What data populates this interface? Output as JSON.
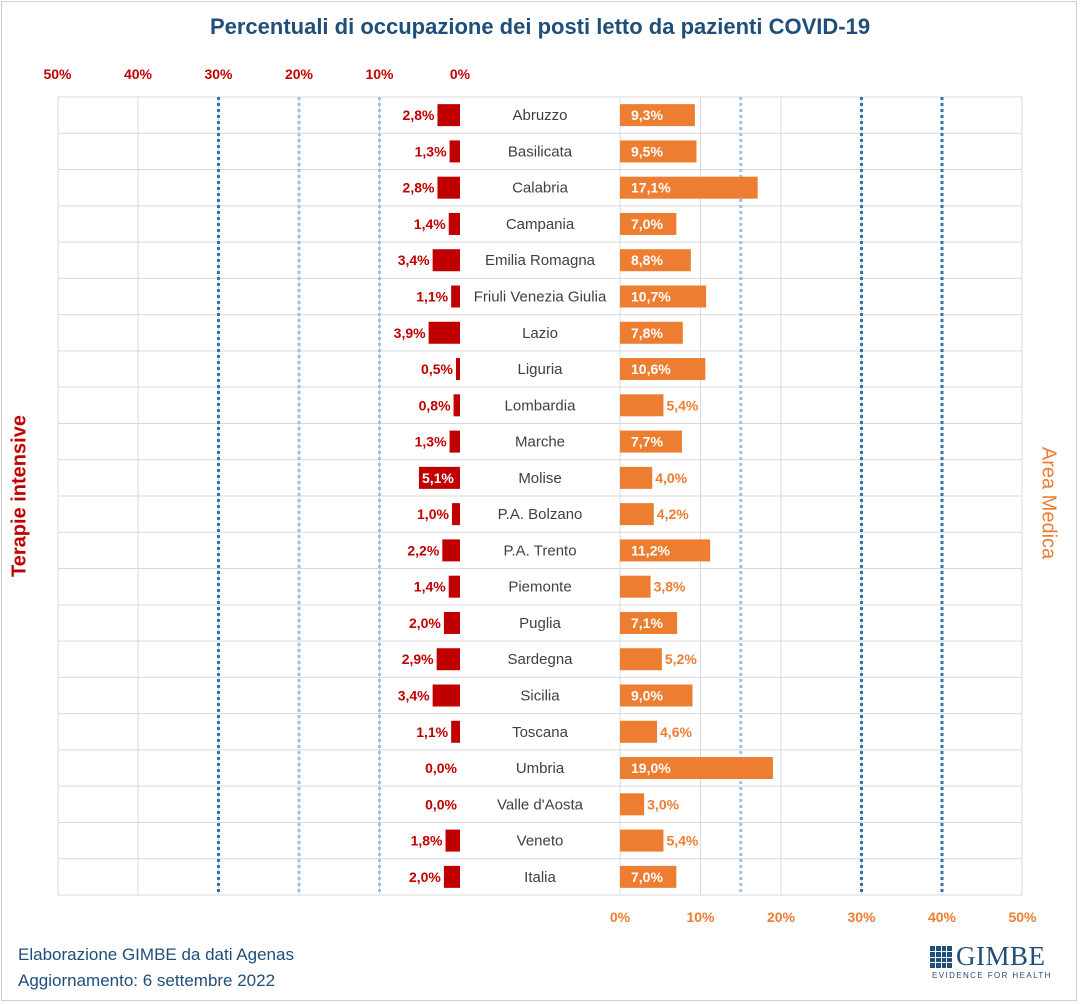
{
  "chart_data": {
    "type": "bar",
    "title": "Percentuali di occupazione dei posti letto da pazienti COVID-19",
    "left_axis_label": "Terapie intensive",
    "right_axis_label": "Area Medica",
    "left_ticks": [
      "50%",
      "40%",
      "30%",
      "20%",
      "10%",
      "0%"
    ],
    "right_ticks": [
      "0%",
      "10%",
      "20%",
      "30%",
      "40%",
      "50%"
    ],
    "categories": [
      "Abruzzo",
      "Basilicata",
      "Calabria",
      "Campania",
      "Emilia Romagna",
      "Friuli Venezia Giulia",
      "Lazio",
      "Liguria",
      "Lombardia",
      "Marche",
      "Molise",
      "P.A. Bolzano",
      "P.A. Trento",
      "Piemonte",
      "Puglia",
      "Sardegna",
      "Sicilia",
      "Toscana",
      "Umbria",
      "Valle d'Aosta",
      "Veneto",
      "Italia"
    ],
    "series": [
      {
        "name": "Terapie intensive",
        "color": "#c00000",
        "values": [
          2.8,
          1.3,
          2.8,
          1.4,
          3.4,
          1.1,
          3.9,
          0.5,
          0.8,
          1.3,
          5.1,
          1.0,
          2.2,
          1.4,
          2.0,
          2.9,
          3.4,
          1.1,
          0.0,
          0.0,
          1.8,
          2.0
        ],
        "labels": [
          "2,8%",
          "1,3%",
          "2,8%",
          "1,4%",
          "3,4%",
          "1,1%",
          "3,9%",
          "0,5%",
          "0,8%",
          "1,3%",
          "5,1%",
          "1,0%",
          "2,2%",
          "1,4%",
          "2,0%",
          "2,9%",
          "3,4%",
          "1,1%",
          "0,0%",
          "0,0%",
          "1,8%",
          "2,0%"
        ]
      },
      {
        "name": "Area Medica",
        "color": "#ed7d31",
        "values": [
          9.3,
          9.5,
          17.1,
          7.0,
          8.8,
          10.7,
          7.8,
          10.6,
          5.4,
          7.7,
          4.0,
          4.2,
          11.2,
          3.8,
          7.1,
          5.2,
          9.0,
          4.6,
          19.0,
          3.0,
          5.4,
          7.0
        ],
        "labels": [
          "9,3%",
          "9,5%",
          "17,1%",
          "7,0%",
          "8,8%",
          "10,7%",
          "7,8%",
          "10,6%",
          "5,4%",
          "7,7%",
          "4,0%",
          "4,2%",
          "11,2%",
          "3,8%",
          "7,1%",
          "5,2%",
          "9,0%",
          "4,6%",
          "19,0%",
          "3,0%",
          "5,4%",
          "7,0%"
        ]
      }
    ],
    "xlim_left": [
      0,
      50
    ],
    "xlim_right": [
      0,
      50
    ],
    "reference_lines": {
      "terapie_intensive": [
        10,
        20,
        30
      ],
      "area_medica": [
        15,
        30,
        40
      ]
    },
    "grid": true
  },
  "footer": {
    "source": "Elaborazione GIMBE da dati Agenas",
    "update": "Aggiornamento: 6 settembre 2022"
  },
  "logo": {
    "name": "GIMBE",
    "tagline": "EVIDENCE FOR HEALTH"
  },
  "colors": {
    "title": "#1f4e79",
    "left_axis": "#c00000",
    "right_axis": "#ed7d31",
    "ref_light": "#9dc3e6",
    "ref_dark": "#2e75b6"
  }
}
